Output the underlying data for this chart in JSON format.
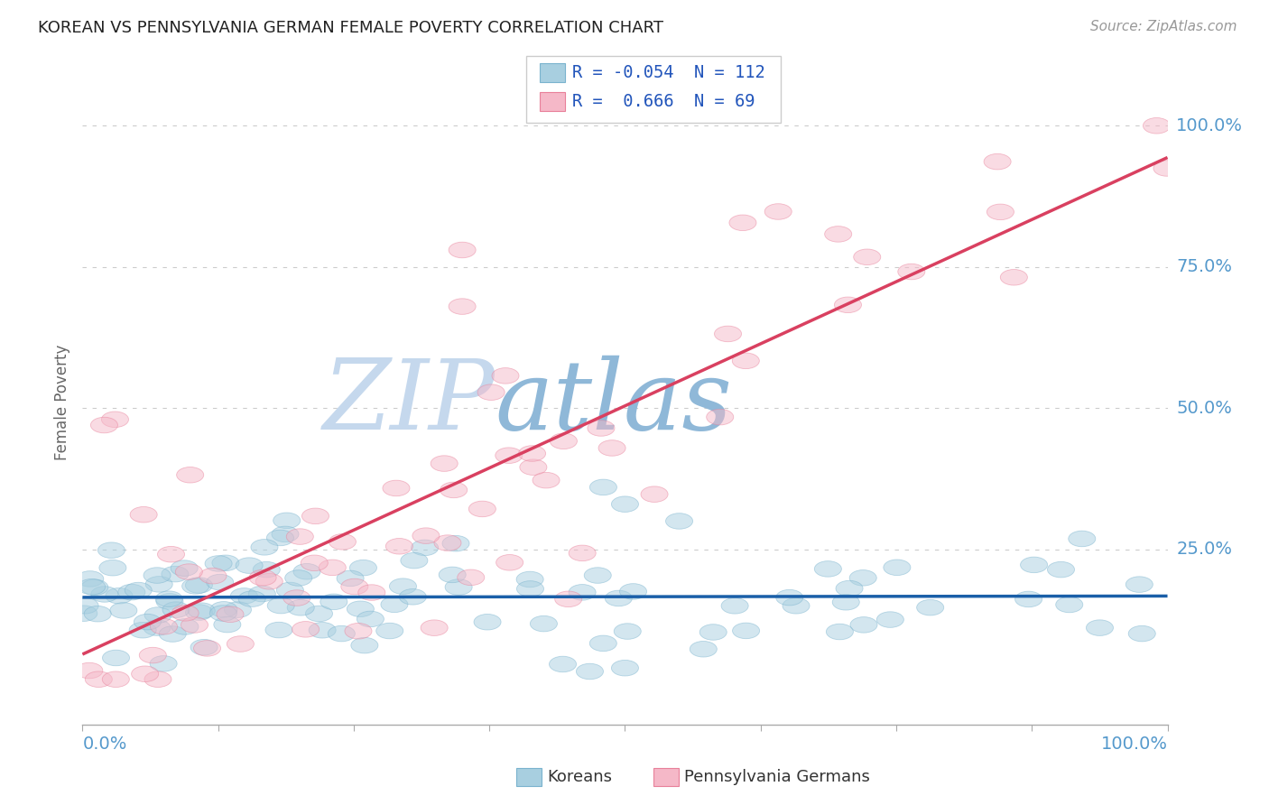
{
  "title": "KOREAN VS PENNSYLVANIA GERMAN FEMALE POVERTY CORRELATION CHART",
  "source": "Source: ZipAtlas.com",
  "ylabel": "Female Poverty",
  "r1": -0.054,
  "n1": 112,
  "r2": 0.666,
  "n2": 69,
  "color_blue": "#a8cfe0",
  "color_blue_edge": "#7ab3ce",
  "color_pink": "#f5b8c8",
  "color_pink_edge": "#e8809a",
  "color_blue_line": "#1a5fa8",
  "color_pink_line": "#d94060",
  "watermark_text": "ZIP",
  "watermark_text2": "atlas",
  "watermark_color1": "#c5d8ed",
  "watermark_color2": "#8fb8d8",
  "background_color": "#ffffff",
  "grid_color": "#cccccc",
  "title_color": "#222222",
  "axis_value_color": "#5599cc",
  "legend_label1": "Koreans",
  "legend_label2": "Pennsylvania Germans",
  "ytick_values": [
    0.25,
    0.5,
    0.75,
    1.0
  ],
  "ytick_labels": [
    "25.0%",
    "50.0%",
    "75.0%",
    "100.0%"
  ],
  "xmin": 0.0,
  "xmax": 1.0,
  "ymin": -0.06,
  "ymax": 1.08
}
